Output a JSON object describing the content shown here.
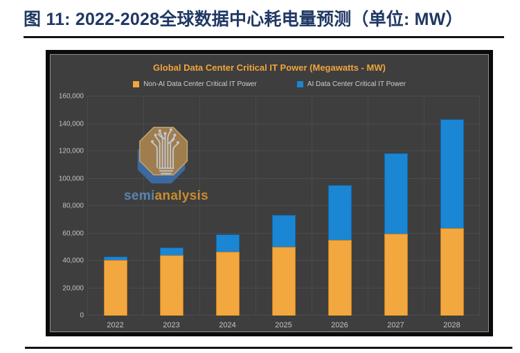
{
  "page": {
    "header_title": "图  11: 2022-2028全球数据中心耗电量预测（单位: MW）"
  },
  "chart_data": {
    "type": "bar",
    "stacked": true,
    "title": "Global Data Center Critical IT Power (Megawatts - MW)",
    "categories": [
      "2022",
      "2023",
      "2024",
      "2025",
      "2026",
      "2027",
      "2028"
    ],
    "series": [
      {
        "name": "Non-AI Data Center Critical IT Power",
        "color": "#f3a73f",
        "values": [
          40500,
          44000,
          46500,
          50000,
          55000,
          60000,
          64000
        ]
      },
      {
        "name": "AI Data Center Critical IT Power",
        "color": "#1b86d4",
        "values": [
          2500,
          5500,
          12500,
          23500,
          40000,
          58500,
          79500
        ]
      }
    ],
    "totals": [
      43000,
      49500,
      59000,
      73500,
      95000,
      118500,
      143500
    ],
    "ylim": [
      0,
      160000
    ],
    "yticks": [
      0,
      20000,
      40000,
      60000,
      80000,
      100000,
      120000,
      140000,
      160000
    ],
    "ytick_labels": [
      "0",
      "20,000",
      "40,000",
      "60,000",
      "80,000",
      "100,000",
      "120,000",
      "140,000",
      "160,000"
    ],
    "grid": true,
    "legend_position": "top",
    "plot_background": "#3e3e3e",
    "title_color": "#f0a43c"
  },
  "watermark": {
    "part1": "semi",
    "part2": "analysis"
  }
}
